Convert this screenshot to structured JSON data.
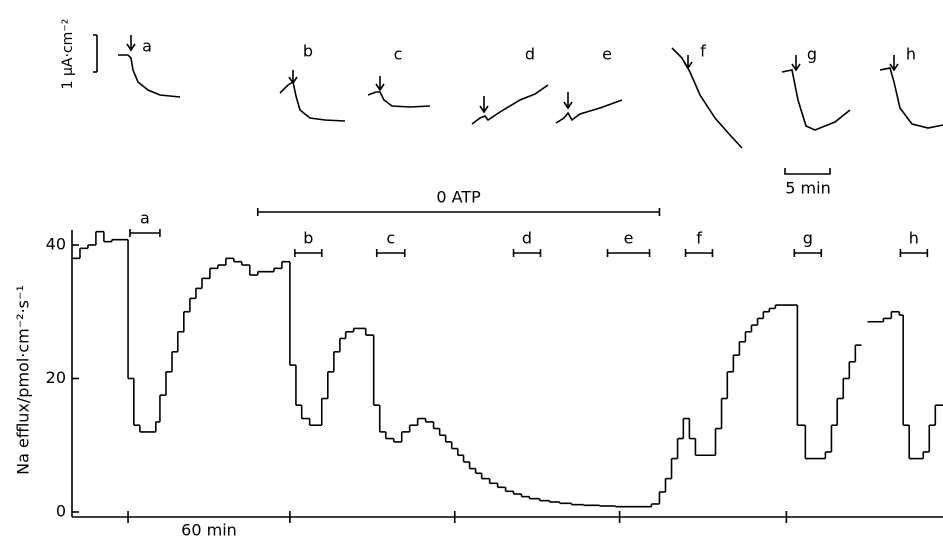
{
  "chart_data": {
    "type": "step",
    "y_label": "Na efflux/pmol·cm⁻²·s⁻¹",
    "time_scale_label": "60 min",
    "color": "#000000",
    "x": [
      0,
      2.9,
      5.8,
      8.7,
      11.6,
      14.5,
      20.4,
      22.5,
      24.7,
      30.5,
      32,
      34.2,
      36.4,
      38.5,
      40.7,
      42.9,
      45.1,
      47.3,
      50.2,
      53.1,
      56,
      58.9,
      61.8,
      64.7,
      67.6,
      73.5,
      76.4,
      79.3,
      81.5,
      83.6,
      86.5,
      90.9,
      93.1,
      95.3,
      97.5,
      99.6,
      102.5,
      106.9,
      109.8,
      112,
      114.2,
      117.1,
      120,
      122.9,
      125.8,
      128.7,
      131.6,
      133.8,
      136,
      138.2,
      140.4,
      142.5,
      144.7,
      146.9,
      149.1,
      152,
      154.9,
      157.8,
      160.7,
      163.6,
      166.5,
      170.2,
      173.8,
      177.5,
      181.8,
      186.2,
      192,
      197.8,
      210.9,
      213.8,
      216,
      218.2,
      220.4,
      222.5,
      224.7,
      226.9,
      234.2,
      236.4,
      238.5,
      240.7,
      242.9,
      245.1,
      247.3,
      249.5,
      251.6,
      253.8,
      256,
      264,
      266.9,
      274.2,
      276.4,
      278.5,
      280.7,
      282.9,
      285.1,
      287.3,
      289.5,
      295.3,
      298.2,
      301.1,
      302.5,
      304.7,
      309.8,
      312,
      314.2
    ],
    "values": [
      38,
      39.5,
      40,
      42,
      40.5,
      40.8,
      20,
      13,
      12,
      13.5,
      17.5,
      21,
      24,
      27,
      30,
      32,
      33.5,
      35,
      36.5,
      37,
      38,
      37.5,
      37,
      35.5,
      36,
      36.5,
      37.5,
      22,
      16,
      14,
      13,
      17,
      21,
      24,
      26,
      27,
      27.5,
      26.5,
      16,
      12,
      11,
      10.5,
      12,
      13,
      14,
      13.5,
      12.5,
      11.5,
      10.5,
      9.5,
      8.5,
      7.5,
      6.5,
      5.8,
      5,
      4.3,
      3.7,
      3.1,
      2.7,
      2.3,
      2,
      1.7,
      1.5,
      1.3,
      1.1,
      1,
      0.9,
      0.8,
      1.2,
      3,
      5,
      8,
      11,
      14,
      11,
      8.5,
      12.5,
      17,
      21,
      23.5,
      25.5,
      27,
      28,
      29,
      30,
      30.5,
      31,
      13,
      8,
      9,
      13,
      17,
      20,
      22.5,
      25,
      null,
      28.5,
      29,
      30,
      29.5,
      13,
      8,
      9,
      13,
      16
    ],
    "xlim": [
      0,
      317
    ],
    "xticks": [
      20.4,
      79.3,
      139.3,
      199.3,
      260
    ],
    "ylim": [
      -0.75,
      40
    ],
    "yticks": [
      0,
      20,
      40
    ],
    "atp_period": {
      "label": "0 ATP",
      "x": [
        67.6,
        213.8
      ]
    },
    "periods": [
      {
        "label": "a",
        "x": [
          21.1,
          32
        ]
      },
      {
        "label": "b",
        "x": [
          81.1,
          90.9
        ]
      },
      {
        "label": "c",
        "x": [
          110.9,
          121.1
        ]
      },
      {
        "label": "d",
        "x": [
          160.7,
          170.5
        ]
      },
      {
        "label": "e",
        "x": [
          194.9,
          210.2
        ]
      },
      {
        "label": "f",
        "x": [
          223.3,
          233.1
        ]
      },
      {
        "label": "g",
        "x": [
          262.9,
          272.7
        ]
      },
      {
        "label": "h",
        "x": [
          301.5,
          311.3
        ]
      }
    ],
    "insets": {
      "labels": [
        "a",
        "b",
        "c",
        "d",
        "e",
        "f",
        "g",
        "h"
      ],
      "current_scale_label": "1 μA·cm⁻²",
      "time_scale_label": "5 min"
    }
  }
}
